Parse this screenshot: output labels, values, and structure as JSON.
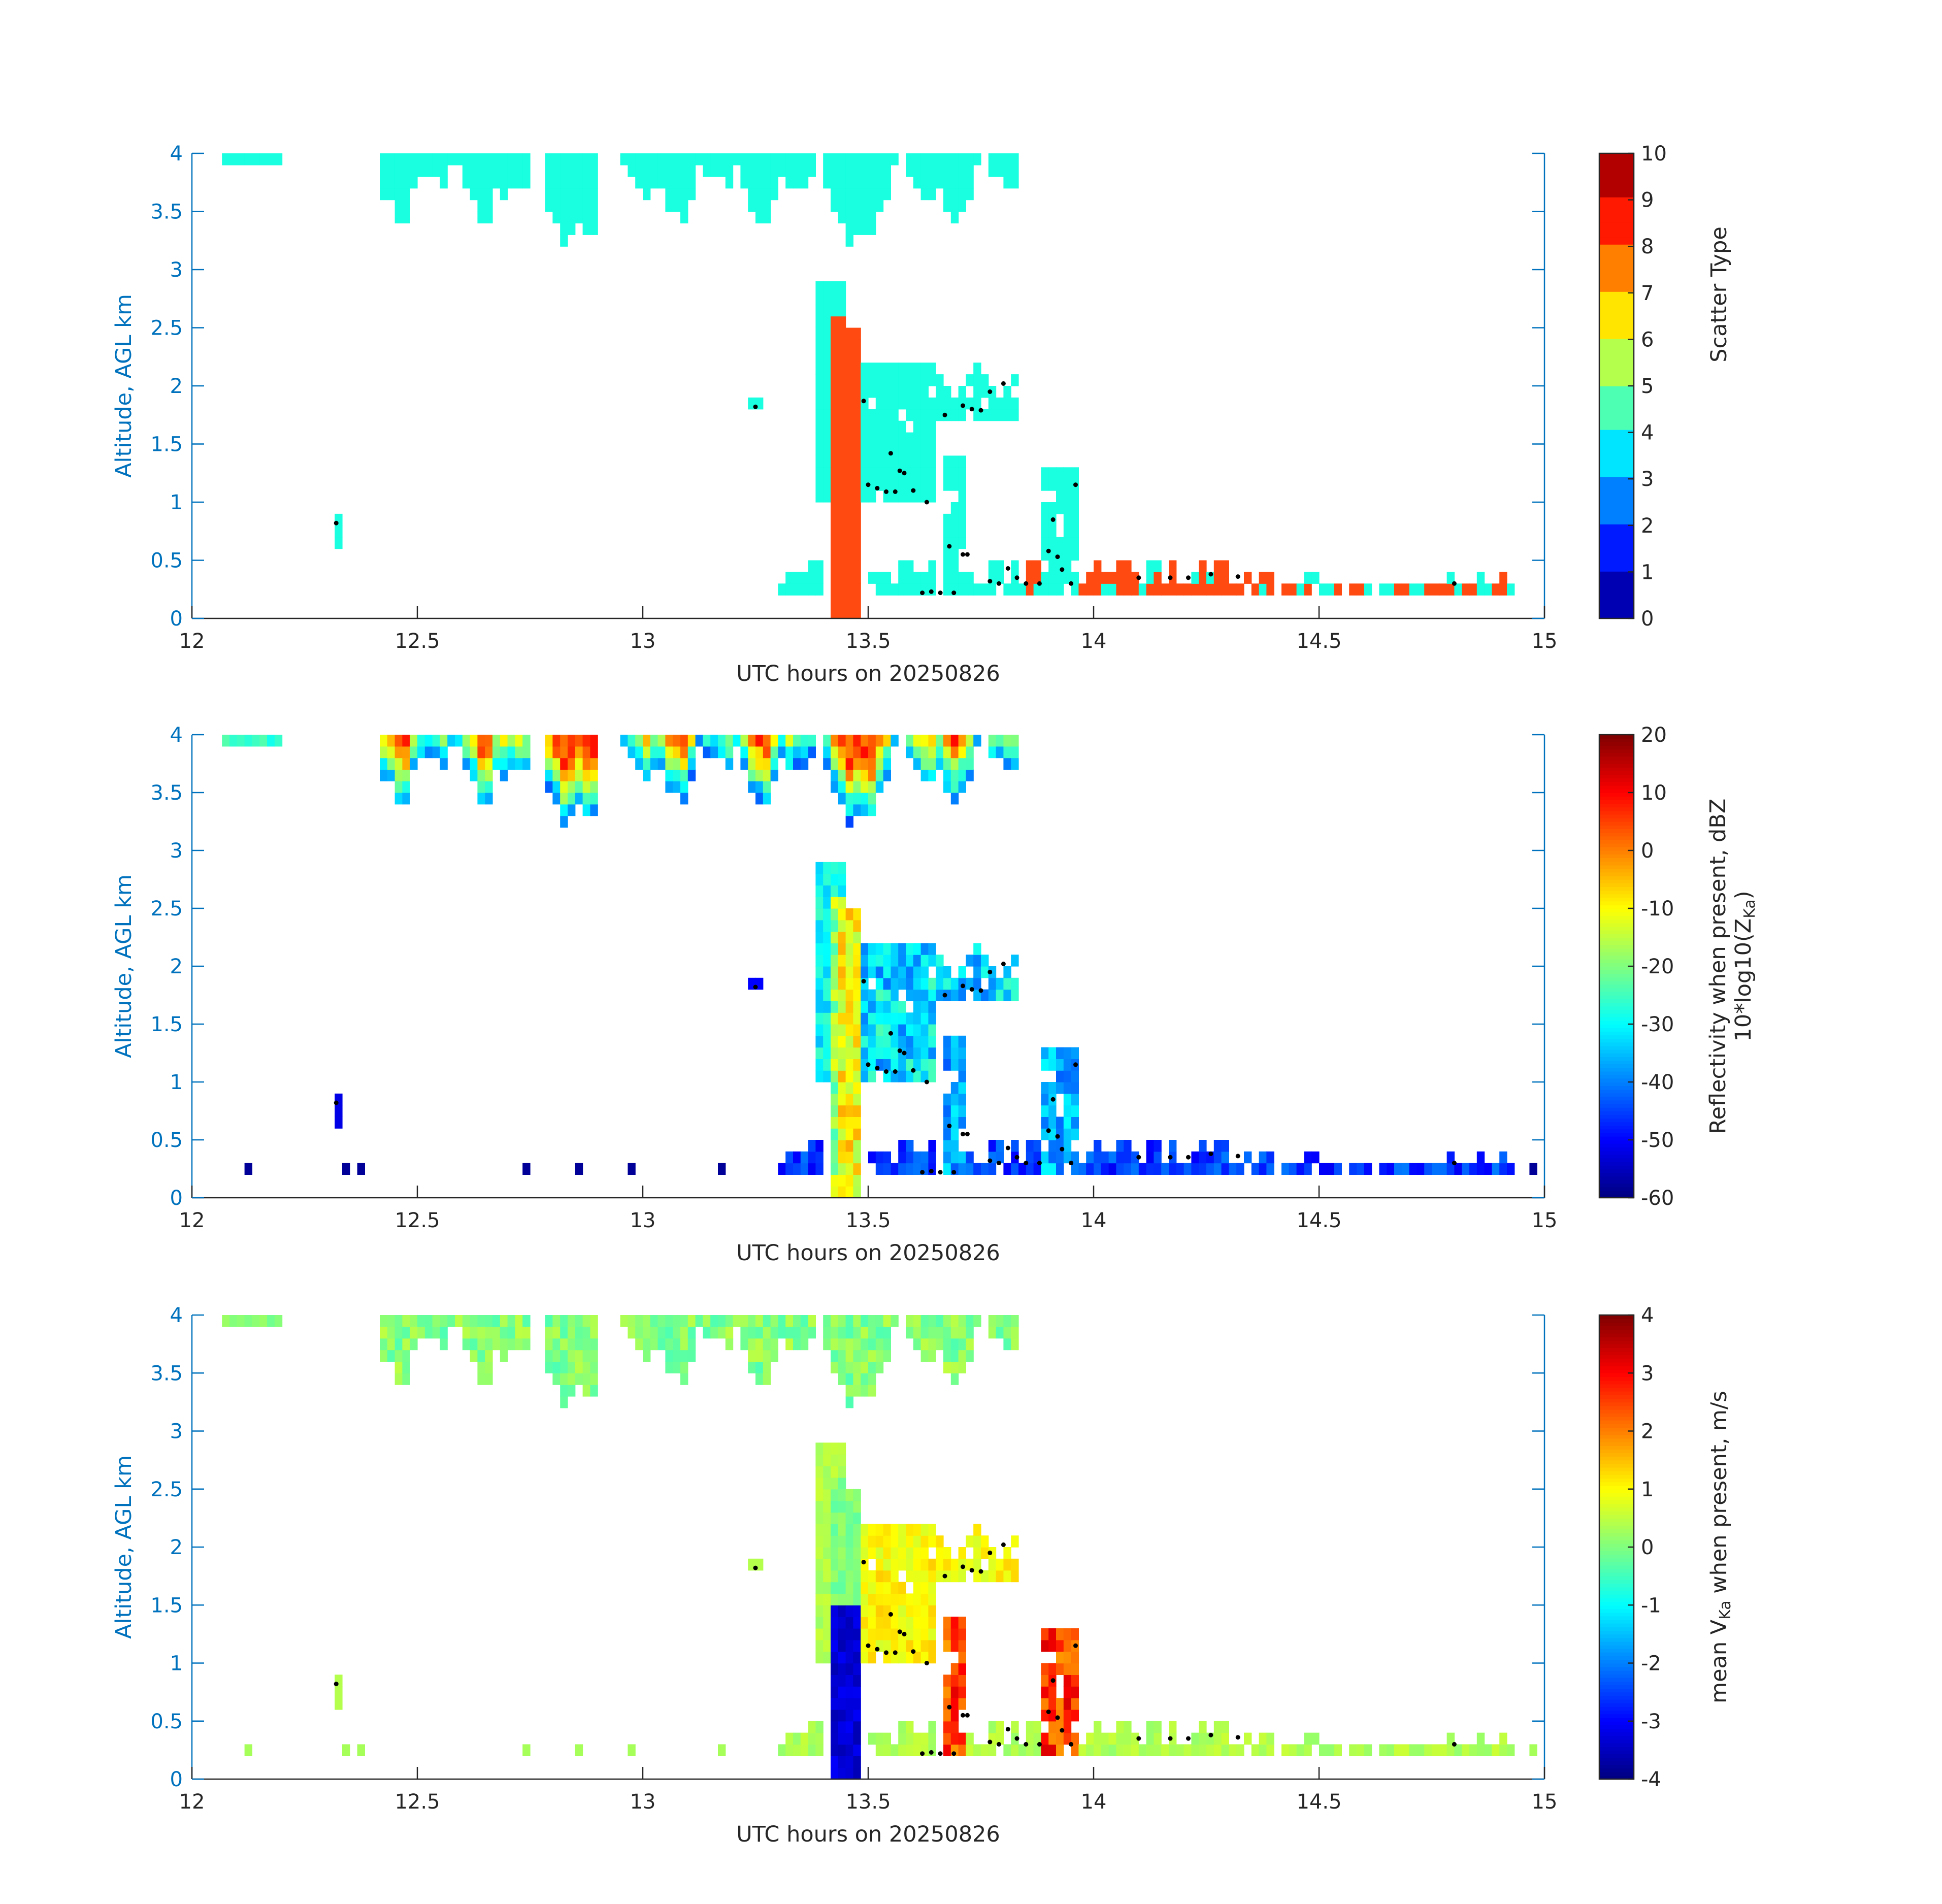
{
  "figure": {
    "xlabel": "UTC hours on 20250826",
    "ylabel": "Altitude, AGL km"
  },
  "colors": {
    "axis_blue": "#0072bd",
    "text_dark": "#262626",
    "scatter_cyan": "#19ffdf",
    "scatter_orange": "#ff4a12",
    "marker": "#000000"
  },
  "chart_data": [
    {
      "type": "heatmap",
      "name": "scatter-type",
      "xlabel": "UTC hours on 20250826",
      "ylabel": "Altitude, AGL km",
      "xlim": [
        12,
        15
      ],
      "ylim": [
        0,
        4
      ],
      "xticks": [
        "12",
        "12.5",
        "13",
        "13.5",
        "14",
        "14.5",
        "15"
      ],
      "yticks": [
        "0",
        "0.5",
        "1",
        "1.5",
        "2",
        "2.5",
        "3",
        "3.5",
        "4"
      ],
      "colorbar": {
        "label": "Scatter Type",
        "label_sub": "",
        "ticks": [
          "0",
          "1",
          "2",
          "3",
          "4",
          "5",
          "6",
          "7",
          "8",
          "9",
          "10"
        ],
        "range": [
          0,
          10
        ]
      },
      "field": "scatter"
    },
    {
      "type": "heatmap",
      "name": "reflectivity",
      "xlabel": "UTC hours on 20250826",
      "ylabel": "Altitude, AGL km",
      "xlim": [
        12,
        15
      ],
      "ylim": [
        0,
        4
      ],
      "xticks": [
        "12",
        "12.5",
        "13",
        "13.5",
        "14",
        "14.5",
        "15"
      ],
      "yticks": [
        "0",
        "0.5",
        "1",
        "1.5",
        "2",
        "2.5",
        "3",
        "3.5",
        "4"
      ],
      "colorbar": {
        "label": "Reflectivity when present, dBZ",
        "label_sub": "10*log10(Z",
        "label_sub_index": "Ka",
        "label_sub_end": ")",
        "ticks": [
          "-60",
          "-50",
          "-40",
          "-30",
          "-20",
          "-10",
          "0",
          "10",
          "20"
        ],
        "range": [
          -60,
          20
        ]
      },
      "field": "reflectivity"
    },
    {
      "type": "heatmap",
      "name": "doppler-velocity",
      "xlabel": "UTC hours on 20250826",
      "ylabel": "Altitude, AGL km",
      "xlim": [
        12,
        15
      ],
      "ylim": [
        0,
        4
      ],
      "xticks": [
        "12",
        "12.5",
        "13",
        "13.5",
        "14",
        "14.5",
        "15"
      ],
      "yticks": [
        "0",
        "0.5",
        "1",
        "1.5",
        "2",
        "2.5",
        "3",
        "3.5",
        "4"
      ],
      "colorbar": {
        "label": "mean V",
        "label_index": "Ka",
        "label_end": " when present, m/s",
        "ticks": [
          "-4",
          "-3",
          "-2",
          "-1",
          "0",
          "1",
          "2",
          "3",
          "4"
        ],
        "range": [
          -4,
          4
        ]
      },
      "field": "velocity"
    }
  ],
  "cloud_features": {
    "upper_deck_x": [
      12.07,
      12.2,
      12.42,
      12.9,
      12.93,
      13.83
    ],
    "upper_deck_base_km": 3.3,
    "convective_column_x": [
      13.39,
      13.48
    ],
    "convective_column_top_km": 2.9,
    "mid_layer_x": [
      13.49,
      13.83
    ],
    "mid_layer_range_km": [
      1.0,
      2.2
    ],
    "low_layer_x": [
      13.3,
      14.95
    ],
    "low_layer_range_km": [
      0.2,
      0.6
    ]
  },
  "markers": [
    [
      12.32,
      0.82
    ],
    [
      13.25,
      1.82
    ],
    [
      13.49,
      1.87
    ],
    [
      13.5,
      1.15
    ],
    [
      13.52,
      1.12
    ],
    [
      13.54,
      1.09
    ],
    [
      13.56,
      1.09
    ],
    [
      13.55,
      1.42
    ],
    [
      13.57,
      1.27
    ],
    [
      13.58,
      1.25
    ],
    [
      13.6,
      1.1
    ],
    [
      13.63,
      1.0
    ],
    [
      13.67,
      1.75
    ],
    [
      13.71,
      1.83
    ],
    [
      13.73,
      1.8
    ],
    [
      13.75,
      1.79
    ],
    [
      13.77,
      1.95
    ],
    [
      13.8,
      2.02
    ],
    [
      13.68,
      0.62
    ],
    [
      13.71,
      0.55
    ],
    [
      13.72,
      0.55
    ],
    [
      13.62,
      0.22
    ],
    [
      13.64,
      0.23
    ],
    [
      13.66,
      0.22
    ],
    [
      13.69,
      0.22
    ],
    [
      13.77,
      0.32
    ],
    [
      13.79,
      0.3
    ],
    [
      13.81,
      0.43
    ],
    [
      13.83,
      0.35
    ],
    [
      13.85,
      0.3
    ],
    [
      13.88,
      0.3
    ],
    [
      13.9,
      0.58
    ],
    [
      13.92,
      0.53
    ],
    [
      13.93,
      0.42
    ],
    [
      13.95,
      0.3
    ],
    [
      13.96,
      1.15
    ],
    [
      14.1,
      0.35
    ],
    [
      14.17,
      0.35
    ],
    [
      14.21,
      0.35
    ],
    [
      14.26,
      0.38
    ],
    [
      14.32,
      0.36
    ],
    [
      14.8,
      0.3
    ],
    [
      13.91,
      0.85
    ]
  ]
}
